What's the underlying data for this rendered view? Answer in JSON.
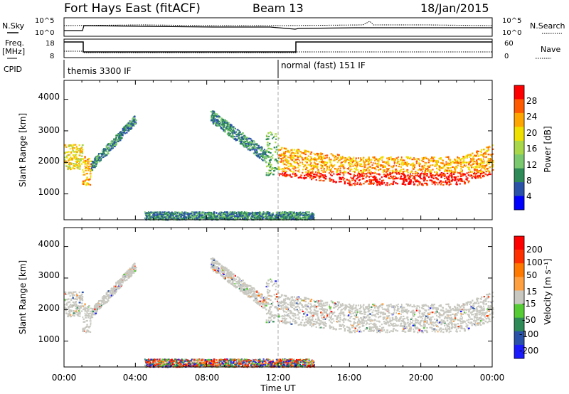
{
  "header": {
    "station": "Fort Hays East (fitACF)",
    "beam": "Beam 13",
    "date": "18/Jan/2015"
  },
  "top_panel": {
    "left_label": "N.Sky",
    "left_ticks": [
      "10^5",
      "10^0"
    ],
    "right_label": "N.Search",
    "right_ticks": [
      "10^5",
      "10^0"
    ]
  },
  "freq_panel": {
    "left_label_1": "Freq.",
    "left_label_2": "[MHz]",
    "left_ticks": [
      "18",
      "8"
    ],
    "right_label": "Nave",
    "right_ticks": [
      "60",
      "0"
    ]
  },
  "cpid": {
    "label": "CPID",
    "segments": [
      "themis 3300 IF",
      "normal (fast) 151 IF"
    ]
  },
  "power_panel": {
    "ylabel": "Slant Range [km]",
    "yticks": [
      "4000",
      "3000",
      "2000",
      "1000"
    ],
    "colorbar_label": "Power [dB]",
    "colorbar_ticks": [
      "28",
      "24",
      "20",
      "16",
      "12",
      "8",
      "4"
    ],
    "colors": [
      "#0000ff",
      "#2a52a8",
      "#2e8b57",
      "#7bc96f",
      "#a8d84a",
      "#f0e000",
      "#ffa500",
      "#ff5a00",
      "#ff0000"
    ]
  },
  "velocity_panel": {
    "ylabel": "Slant Range [km]",
    "yticks": [
      "4000",
      "3000",
      "2000",
      "1000"
    ],
    "colorbar_label": "Velocity [m s⁻¹]",
    "colorbar_ticks": [
      "200",
      "100",
      "50",
      "15",
      "-15",
      "-50",
      "-100",
      "-200"
    ],
    "colors": [
      "#1a1aff",
      "#2a52a8",
      "#2e8b57",
      "#55cc33",
      "#c8c8c0",
      "#ffa040",
      "#ff7800",
      "#ff3000",
      "#ff0000"
    ]
  },
  "xaxis": {
    "label": "Time UT",
    "ticks": [
      "00:00",
      "04:00",
      "08:00",
      "12:00",
      "16:00",
      "20:00",
      "00:00"
    ]
  },
  "chart_data": {
    "type": "heatmap",
    "title": "Fort Hays East (fitACF) Beam 13 18/Jan/2015",
    "xlabel": "Time UT",
    "ylabel": "Slant Range [km]",
    "xlim_hours": [
      0,
      24
    ],
    "ylim_km": [
      180,
      4600
    ],
    "frequency_mhz": [
      {
        "start_hr": 0,
        "end_hr": 1,
        "value": 16
      },
      {
        "start_hr": 1,
        "end_hr": 13,
        "value": 10.5
      },
      {
        "start_hr": 13,
        "end_hr": 24,
        "value": 16
      }
    ],
    "echo_regions": [
      {
        "name": "early arc",
        "t_start": 0.0,
        "t_end": 1.0,
        "range_km_top": 2600,
        "range_km_bottom": 1800,
        "power_db": 18,
        "velocity": 0
      },
      {
        "name": "early minimum",
        "t_start": 1.0,
        "t_end": 1.5,
        "range_km_top": 2200,
        "range_km_bottom": 1300,
        "power_db": 22,
        "velocity": 0
      },
      {
        "name": "rising arc",
        "t_start": 1.5,
        "t_end": 4.0,
        "range_km_top": 3500,
        "range_km_bottom": 2000,
        "power_db": 6,
        "velocity": 0
      },
      {
        "name": "evening band",
        "t_start": 8.2,
        "t_end": 11.3,
        "range_km_top": 3600,
        "range_km_bottom": 1900,
        "power_db": 8,
        "velocity": 0
      },
      {
        "name": "spike",
        "t_start": 11.3,
        "t_end": 12.0,
        "range_km_top": 3000,
        "range_km_bottom": 1600,
        "power_db": 10,
        "velocity": 0
      },
      {
        "name": "main band",
        "t_start": 12.0,
        "t_end": 24.0,
        "range_km_top": 2400,
        "range_km_bottom": 1100,
        "power_db": 24,
        "velocity": 0
      },
      {
        "name": "near range",
        "t_start": 4.5,
        "t_end": 14.0,
        "range_km_top": 450,
        "range_km_bottom": 200,
        "power_db": 6,
        "velocity": -40
      }
    ]
  }
}
